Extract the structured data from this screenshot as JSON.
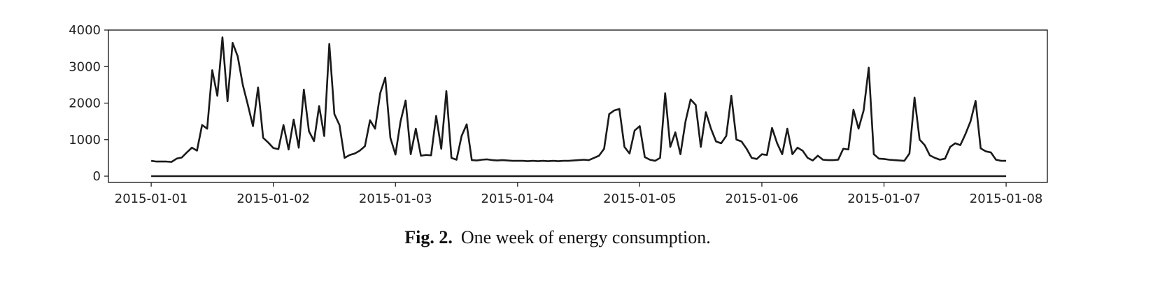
{
  "chart_data": {
    "type": "line",
    "series": [
      {
        "color": "#1a1a1a",
        "x": [
          0,
          1,
          2,
          3,
          4,
          5,
          6,
          7,
          8,
          9,
          10,
          11,
          12,
          13,
          14,
          15,
          16,
          17,
          18,
          19,
          20,
          21,
          22,
          23,
          24,
          25,
          26,
          27,
          28,
          29,
          30,
          31,
          32,
          33,
          34,
          35,
          36,
          37,
          38,
          39,
          40,
          41,
          42,
          43,
          44,
          45,
          46,
          47,
          48,
          49,
          50,
          51,
          52,
          53,
          54,
          55,
          56,
          57,
          58,
          59,
          60,
          61,
          62,
          63,
          64,
          65,
          66,
          67,
          68,
          69,
          70,
          71,
          72,
          73,
          74,
          75,
          76,
          77,
          78,
          79,
          80,
          81,
          82,
          83,
          84,
          85,
          86,
          87,
          88,
          89,
          90,
          91,
          92,
          93,
          94,
          95,
          96,
          97,
          98,
          99,
          100,
          101,
          102,
          103,
          104,
          105,
          106,
          107,
          108,
          109,
          110,
          111,
          112,
          113,
          114,
          115,
          116,
          117,
          118,
          119,
          120,
          121,
          122,
          123,
          124,
          125,
          126,
          127,
          128,
          129,
          130,
          131,
          132,
          133,
          134,
          135,
          136,
          137,
          138,
          139,
          140,
          141,
          142,
          143,
          144,
          145,
          146,
          147,
          148,
          149,
          150,
          151,
          152,
          153,
          154,
          155,
          156,
          157,
          158,
          159,
          160,
          161,
          162,
          163,
          164,
          165,
          166,
          167,
          168
        ],
        "values": [
          420,
          400,
          400,
          400,
          390,
          480,
          510,
          650,
          780,
          700,
          1400,
          1300,
          2900,
          2200,
          3800,
          2050,
          3650,
          3280,
          2500,
          1950,
          1370,
          2430,
          1050,
          920,
          770,
          740,
          1400,
          730,
          1550,
          780,
          2370,
          1230,
          960,
          1920,
          1100,
          3620,
          1700,
          1400,
          500,
          580,
          620,
          700,
          820,
          1530,
          1300,
          2270,
          2700,
          1050,
          590,
          1500,
          2070,
          600,
          1300,
          560,
          580,
          570,
          1650,
          750,
          2330,
          500,
          450,
          1100,
          1420,
          440,
          430,
          450,
          460,
          440,
          430,
          440,
          430,
          420,
          420,
          420,
          410,
          420,
          410,
          420,
          410,
          420,
          410,
          420,
          420,
          430,
          440,
          450,
          440,
          500,
          560,
          750,
          1700,
          1800,
          1840,
          800,
          620,
          1250,
          1370,
          520,
          450,
          420,
          500,
          2270,
          800,
          1200,
          600,
          1500,
          2100,
          1950,
          800,
          1750,
          1300,
          950,
          900,
          1100,
          2200,
          1000,
          950,
          750,
          500,
          470,
          600,
          580,
          1320,
          900,
          600,
          1300,
          600,
          780,
          700,
          500,
          430,
          560,
          450,
          440,
          440,
          450,
          750,
          730,
          1820,
          1300,
          1800,
          2970,
          600,
          480,
          470,
          450,
          440,
          430,
          420,
          620,
          2150,
          1000,
          850,
          570,
          500,
          450,
          480,
          800,
          900,
          850,
          1150,
          1500,
          2060,
          760,
          680,
          650,
          450,
          420,
          420
        ]
      },
      {
        "color": "#1a1a1a",
        "x": [
          0,
          168
        ],
        "values": [
          0,
          0
        ]
      }
    ],
    "xlim": [
      -8.4,
      176.1
    ],
    "xticks": [
      {
        "value": 0,
        "label": "2015-01-01"
      },
      {
        "value": 24,
        "label": "2015-01-02"
      },
      {
        "value": 48,
        "label": "2015-01-03"
      },
      {
        "value": 72,
        "label": "2015-01-04"
      },
      {
        "value": 96,
        "label": "2015-01-05"
      },
      {
        "value": 120,
        "label": "2015-01-06"
      },
      {
        "value": 144,
        "label": "2015-01-07"
      },
      {
        "value": 168,
        "label": "2015-01-08"
      }
    ],
    "ylim": [
      -172,
      4000
    ],
    "yticks": [
      0,
      1000,
      2000,
      3000,
      4000
    ],
    "grid": false
  },
  "caption": {
    "label": "Fig. 2.",
    "text": "One week of energy consumption."
  }
}
